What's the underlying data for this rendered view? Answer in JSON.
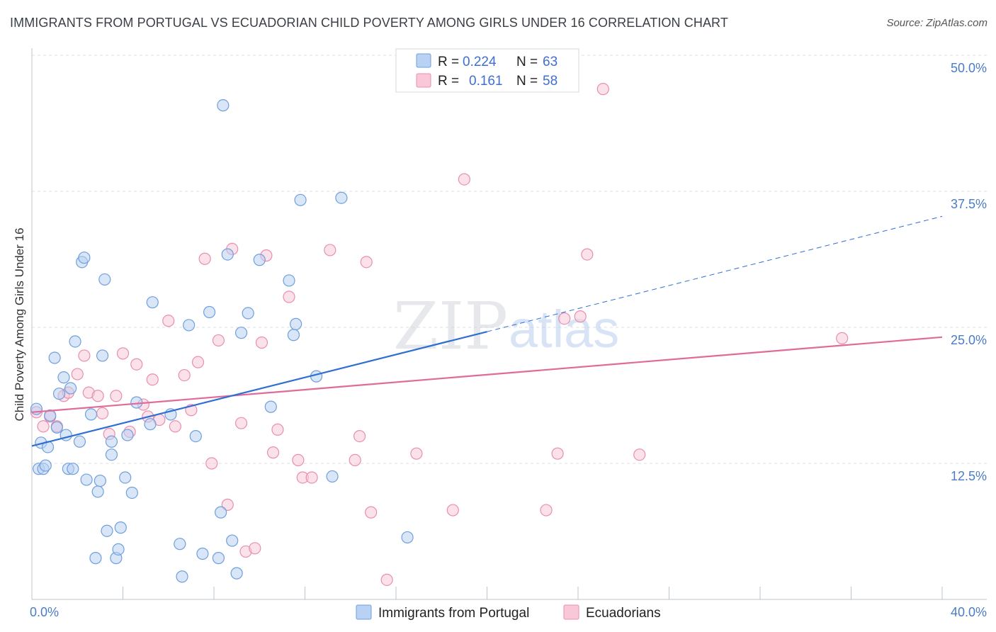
{
  "title": "IMMIGRANTS FROM PORTUGAL VS ECUADORIAN CHILD POVERTY AMONG GIRLS UNDER 16 CORRELATION CHART",
  "source": "Source: ZipAtlas.com",
  "watermark": {
    "zip": "ZIP",
    "atlas": "atlas"
  },
  "colors": {
    "blue_fill": "#b9d2f3",
    "blue_stroke": "#6f9fdc",
    "blue_line": "#2f6fd0",
    "pink_fill": "#f8c8d8",
    "pink_stroke": "#e88fae",
    "pink_line": "#e06a98",
    "tick_text": "#4a7cc7",
    "grid": "#dcdfe4"
  },
  "legend": {
    "rows": [
      {
        "r_label": "R =",
        "r_value": "0.224",
        "n_label": "N =",
        "n_value": "63"
      },
      {
        "r_label": "R =",
        "r_value": "0.161",
        "n_label": "N =",
        "n_value": "58"
      }
    ]
  },
  "chart_data": {
    "type": "scatter",
    "title": "IMMIGRANTS FROM PORTUGAL VS ECUADORIAN CHILD POVERTY AMONG GIRLS UNDER 16 CORRELATION CHART",
    "xlabel": "",
    "ylabel": "Child Poverty Among Girls Under 16",
    "xlim": [
      0,
      40
    ],
    "ylim": [
      0,
      50
    ],
    "x_tick_labels": [
      "0.0%",
      "40.0%"
    ],
    "y_ticks": [
      12.5,
      25.0,
      37.5,
      50.0
    ],
    "y_tick_labels": [
      "12.5%",
      "25.0%",
      "37.5%",
      "50.0%"
    ],
    "grid": true,
    "legend_position": "bottom",
    "series": [
      {
        "name": "Immigrants from Portugal",
        "r": 0.224,
        "n": 63,
        "trend": {
          "x0": 0,
          "y0": 14.1,
          "x1": 20,
          "y1": 24.6,
          "dash_to_x": 40,
          "dash_to_y": 35.2
        },
        "points": [
          [
            0.2,
            17.5
          ],
          [
            0.3,
            12.0
          ],
          [
            0.4,
            14.4
          ],
          [
            0.5,
            12.0
          ],
          [
            0.6,
            12.3
          ],
          [
            0.7,
            14.0
          ],
          [
            0.8,
            16.9
          ],
          [
            1.0,
            22.2
          ],
          [
            1.1,
            15.8
          ],
          [
            1.2,
            18.9
          ],
          [
            1.4,
            20.4
          ],
          [
            1.5,
            15.1
          ],
          [
            1.6,
            12.0
          ],
          [
            1.7,
            19.4
          ],
          [
            1.8,
            12.0
          ],
          [
            1.9,
            23.7
          ],
          [
            2.1,
            14.5
          ],
          [
            2.2,
            31.0
          ],
          [
            2.3,
            31.4
          ],
          [
            2.4,
            11.0
          ],
          [
            2.6,
            17.0
          ],
          [
            2.8,
            3.8
          ],
          [
            2.9,
            9.9
          ],
          [
            3.0,
            10.9
          ],
          [
            3.1,
            22.4
          ],
          [
            3.2,
            29.4
          ],
          [
            3.3,
            6.3
          ],
          [
            3.5,
            13.3
          ],
          [
            3.5,
            14.5
          ],
          [
            3.7,
            3.8
          ],
          [
            3.8,
            4.6
          ],
          [
            3.9,
            6.6
          ],
          [
            4.1,
            11.2
          ],
          [
            4.2,
            15.1
          ],
          [
            4.4,
            9.8
          ],
          [
            4.6,
            18.1
          ],
          [
            5.2,
            16.1
          ],
          [
            5.3,
            27.3
          ],
          [
            6.1,
            17.0
          ],
          [
            6.5,
            5.1
          ],
          [
            6.6,
            2.1
          ],
          [
            6.9,
            25.2
          ],
          [
            7.2,
            15.0
          ],
          [
            7.5,
            4.2
          ],
          [
            7.8,
            26.4
          ],
          [
            8.2,
            3.8
          ],
          [
            8.3,
            8.0
          ],
          [
            8.4,
            45.4
          ],
          [
            8.6,
            31.7
          ],
          [
            8.8,
            5.4
          ],
          [
            9.0,
            2.4
          ],
          [
            9.2,
            24.5
          ],
          [
            9.5,
            26.3
          ],
          [
            10.0,
            31.2
          ],
          [
            10.5,
            17.7
          ],
          [
            11.3,
            29.3
          ],
          [
            11.5,
            24.3
          ],
          [
            11.6,
            25.3
          ],
          [
            11.8,
            36.7
          ],
          [
            12.5,
            20.5
          ],
          [
            13.2,
            11.3
          ],
          [
            13.6,
            36.9
          ],
          [
            16.5,
            5.7
          ]
        ]
      },
      {
        "name": "Ecuadorians",
        "r": 0.161,
        "n": 58,
        "trend": {
          "x0": 0,
          "y0": 17.2,
          "x1": 40,
          "y1": 24.1
        },
        "points": [
          [
            0.2,
            17.2
          ],
          [
            0.5,
            15.9
          ],
          [
            0.8,
            16.8
          ],
          [
            1.1,
            15.9
          ],
          [
            1.4,
            18.7
          ],
          [
            1.6,
            19.0
          ],
          [
            2.0,
            20.7
          ],
          [
            2.3,
            22.4
          ],
          [
            2.5,
            19.0
          ],
          [
            2.9,
            18.7
          ],
          [
            3.1,
            17.1
          ],
          [
            3.4,
            15.2
          ],
          [
            3.7,
            18.7
          ],
          [
            4.0,
            22.6
          ],
          [
            4.3,
            15.4
          ],
          [
            4.6,
            21.6
          ],
          [
            4.9,
            17.9
          ],
          [
            5.1,
            16.8
          ],
          [
            5.3,
            20.2
          ],
          [
            5.6,
            16.5
          ],
          [
            6.0,
            25.6
          ],
          [
            6.3,
            15.9
          ],
          [
            6.7,
            20.6
          ],
          [
            7.0,
            17.4
          ],
          [
            7.3,
            21.8
          ],
          [
            7.6,
            31.3
          ],
          [
            7.9,
            12.5
          ],
          [
            8.2,
            23.8
          ],
          [
            8.6,
            8.7
          ],
          [
            8.8,
            32.2
          ],
          [
            9.2,
            16.2
          ],
          [
            9.4,
            4.4
          ],
          [
            9.8,
            4.7
          ],
          [
            10.1,
            23.6
          ],
          [
            10.3,
            31.6
          ],
          [
            10.6,
            13.5
          ],
          [
            10.8,
            15.6
          ],
          [
            11.3,
            27.8
          ],
          [
            11.7,
            12.8
          ],
          [
            11.9,
            11.2
          ],
          [
            12.3,
            11.2
          ],
          [
            13.1,
            32.1
          ],
          [
            14.2,
            12.8
          ],
          [
            14.4,
            15.0
          ],
          [
            14.7,
            31.0
          ],
          [
            14.9,
            8.0
          ],
          [
            15.6,
            1.8
          ],
          [
            16.9,
            13.4
          ],
          [
            18.5,
            8.2
          ],
          [
            19.0,
            38.6
          ],
          [
            22.6,
            8.2
          ],
          [
            23.1,
            13.4
          ],
          [
            23.4,
            25.8
          ],
          [
            24.1,
            26.0
          ],
          [
            24.4,
            31.7
          ],
          [
            25.1,
            46.9
          ],
          [
            26.7,
            13.3
          ],
          [
            35.6,
            24.0
          ]
        ]
      }
    ]
  }
}
